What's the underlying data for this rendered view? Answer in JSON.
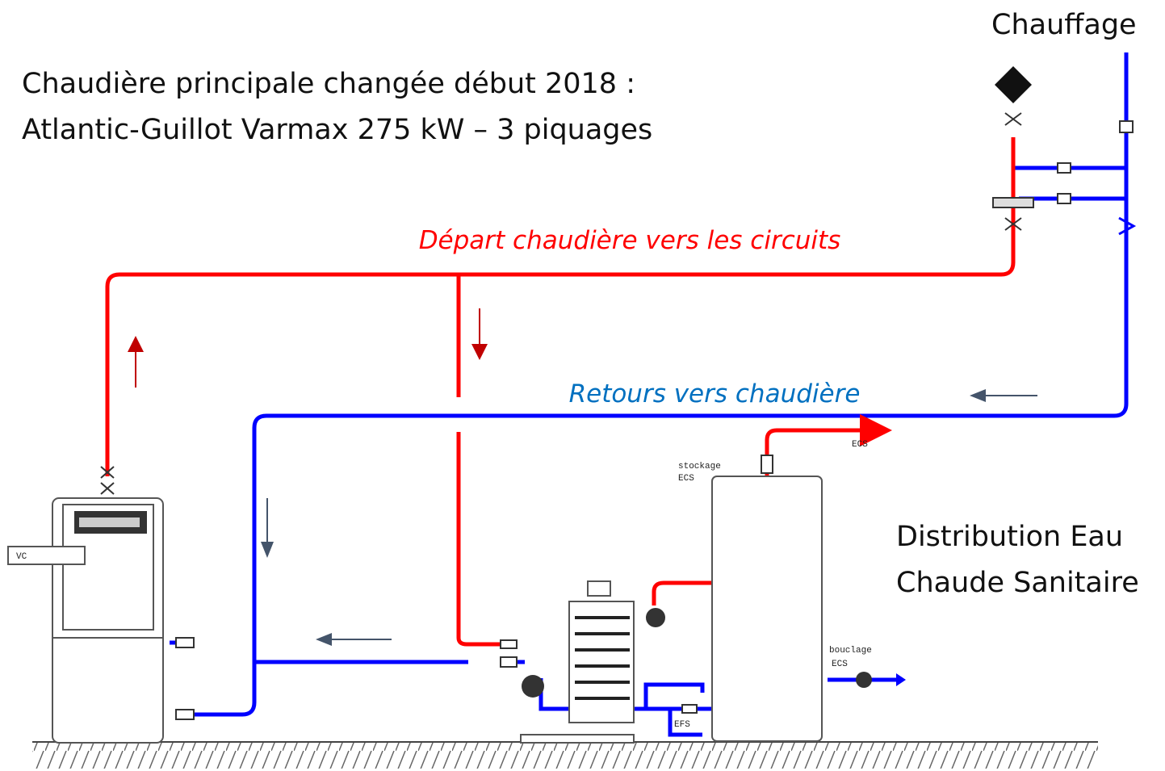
{
  "heading": [
    "Chaudière principale changée début 2018 :",
    "Atlantic-Guillot Varmax 275 kW – 3 piquages"
  ],
  "heating": "Chauffage",
  "pipes": {
    "supply": "Départ chaudière vers les circuits",
    "return": "Retours vers chaudière"
  },
  "dhw": [
    "Distribution Eau",
    "Chaude Sanitaire"
  ],
  "tags": {
    "storage": [
      "stockage",
      "ECS"
    ],
    "dhw_out": "ECS",
    "loop": [
      "bouclage",
      "ECS"
    ],
    "cold": "EFS",
    "boiler_panel": "VC"
  }
}
